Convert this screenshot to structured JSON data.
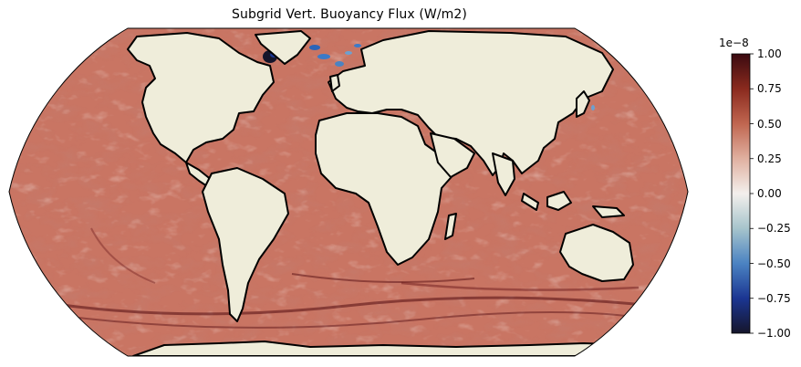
{
  "title": "Subgrid Vert. Buoyancy Flux (W/m2)",
  "map": {
    "projection": "Robinson",
    "land_color": "#efedda",
    "coastline_color": "#000000",
    "dominant_ocean_color": "#c97563"
  },
  "colorbar": {
    "cmap": "balance",
    "vmin": -1.0,
    "vmax": 1.0,
    "exponent_label": "1e−8",
    "ticks": [
      "1.00",
      "0.75",
      "0.50",
      "0.25",
      "0.00",
      "−0.25",
      "−0.50",
      "−0.75",
      "−1.00"
    ],
    "tick_values": [
      1.0,
      0.75,
      0.5,
      0.25,
      0.0,
      -0.25,
      -0.5,
      -0.75,
      -1.0
    ],
    "stops": [
      "#3a0a10",
      "#8a2a1e",
      "#c06650",
      "#e0b0a0",
      "#f3efec",
      "#a6c4cc",
      "#4b83c2",
      "#1b3692",
      "#15152b"
    ]
  }
}
